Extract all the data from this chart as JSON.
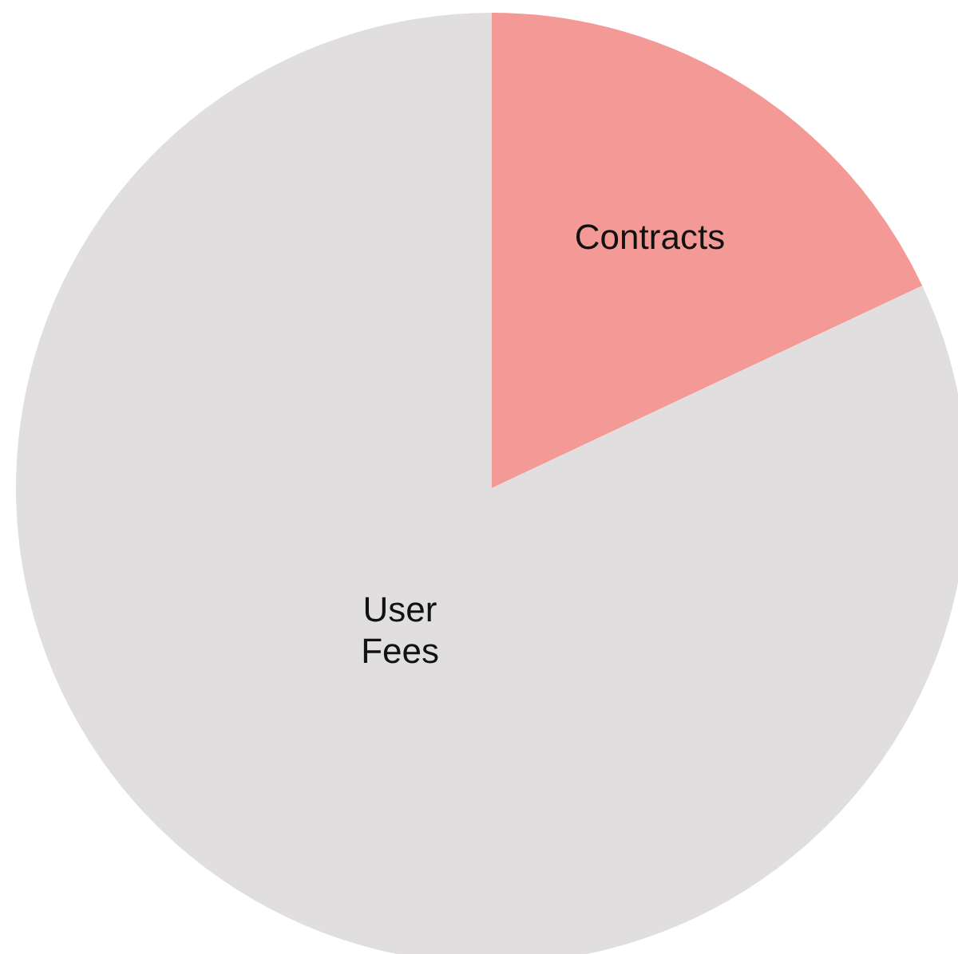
{
  "chart_data": {
    "type": "pie",
    "categories": [
      "Contracts",
      "User Fees"
    ],
    "values": [
      18,
      82
    ],
    "colors": [
      "#f39a96",
      "#e1dedf"
    ],
    "legend": false
  }
}
